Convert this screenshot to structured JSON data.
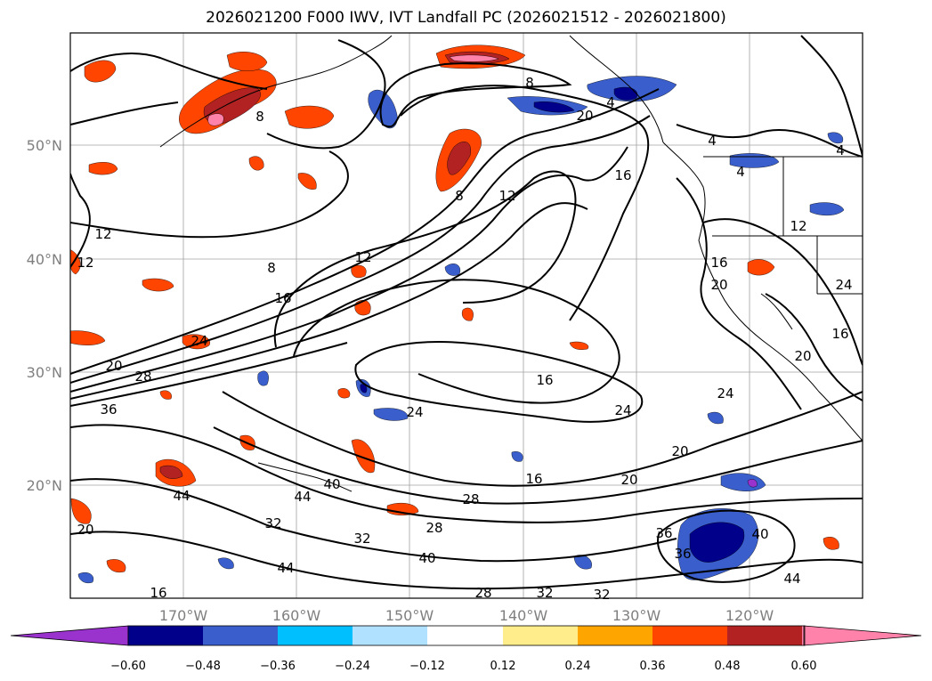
{
  "title": "2026021200 F000 IWV, IVT Landfall PC (2026021512 - 2026021800)",
  "map": {
    "lat_labels": [
      "50°N",
      "40°N",
      "30°N",
      "20°N"
    ],
    "lon_labels": [
      "170°W",
      "160°W",
      "150°W",
      "140°W",
      "130°W",
      "120°W"
    ],
    "lat_values": [
      50,
      40,
      30,
      20
    ],
    "lon_values": [
      -170,
      -160,
      -150,
      -140,
      -130,
      -120
    ],
    "extent": {
      "lon_min": -180,
      "lon_max": -110,
      "lat_min": 10,
      "lat_max": 60
    }
  },
  "contour_labels": [
    "8",
    "8",
    "8",
    "8",
    "4",
    "4",
    "4",
    "4",
    "12",
    "12",
    "12",
    "12",
    "12",
    "16",
    "16",
    "16",
    "16",
    "16",
    "16",
    "20",
    "20",
    "20",
    "20",
    "20",
    "20",
    "24",
    "24",
    "24",
    "24",
    "24",
    "28",
    "28",
    "28",
    "28",
    "32",
    "32",
    "32",
    "32",
    "36",
    "36",
    "36",
    "40",
    "40",
    "40",
    "44",
    "44",
    "44",
    "44",
    "20",
    "16"
  ],
  "colorbar": {
    "ticks": [
      "−0.60",
      "−0.48",
      "−0.36",
      "−0.24",
      "−0.12",
      "0.12",
      "0.24",
      "0.36",
      "0.48",
      "0.60"
    ],
    "colors": [
      "#9a32cd",
      "#00008b",
      "#3a5fcd",
      "#00bfff",
      "#b0e2ff",
      "#ffffff",
      "#ffec8b",
      "#ffa500",
      "#ff4500",
      "#b22222",
      "#ff82ab"
    ]
  }
}
